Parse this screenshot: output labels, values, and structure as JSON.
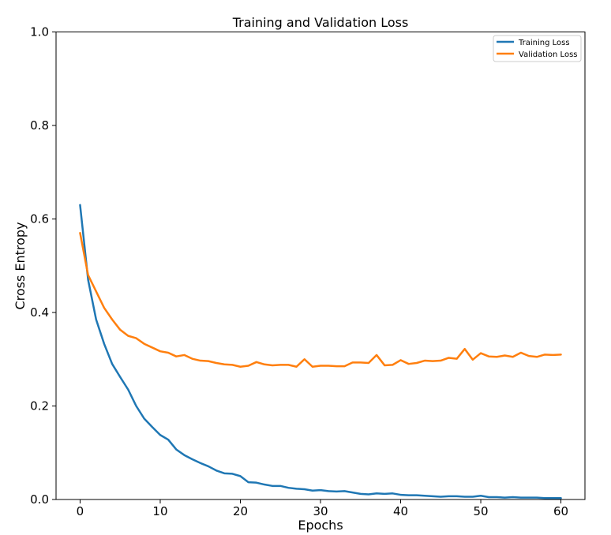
{
  "chart_data": {
    "type": "line",
    "title": "Training and Validation Loss",
    "xlabel": "Epochs",
    "ylabel": "Cross Entropy",
    "xlim": [
      -3,
      63
    ],
    "ylim": [
      0,
      1.0
    ],
    "xticks": [
      0,
      10,
      20,
      30,
      40,
      50,
      60
    ],
    "xtick_labels": [
      "0",
      "10",
      "20",
      "30",
      "40",
      "50",
      "60"
    ],
    "yticks": [
      0,
      0.2,
      0.4,
      0.6,
      0.8,
      1.0
    ],
    "ytick_labels": [
      "0.0",
      "0.2",
      "0.4",
      "0.6",
      "0.8",
      "1.0"
    ],
    "grid": false,
    "legend_position": "top-right",
    "x": [
      0,
      1,
      2,
      3,
      4,
      5,
      6,
      7,
      8,
      9,
      10,
      11,
      12,
      13,
      14,
      15,
      16,
      17,
      18,
      19,
      20,
      21,
      22,
      23,
      24,
      25,
      26,
      27,
      28,
      29,
      30,
      31,
      32,
      33,
      34,
      35,
      36,
      37,
      38,
      39,
      40,
      41,
      42,
      43,
      44,
      45,
      46,
      47,
      48,
      49,
      50,
      51,
      52,
      53,
      54,
      55,
      56,
      57,
      58,
      59,
      60
    ],
    "series": [
      {
        "name": "Training Loss",
        "color": "#1f77b4",
        "values": [
          0.63,
          0.47,
          0.385,
          0.333,
          0.29,
          0.262,
          0.235,
          0.2,
          0.173,
          0.155,
          0.138,
          0.128,
          0.107,
          0.095,
          0.086,
          0.078,
          0.071,
          0.062,
          0.056,
          0.055,
          0.05,
          0.037,
          0.036,
          0.032,
          0.029,
          0.029,
          0.025,
          0.023,
          0.022,
          0.019,
          0.02,
          0.018,
          0.017,
          0.018,
          0.015,
          0.012,
          0.011,
          0.013,
          0.012,
          0.013,
          0.01,
          0.009,
          0.009,
          0.008,
          0.007,
          0.006,
          0.007,
          0.007,
          0.006,
          0.006,
          0.008,
          0.005,
          0.005,
          0.004,
          0.005,
          0.004,
          0.004,
          0.004,
          0.003,
          0.003,
          0.003
        ]
      },
      {
        "name": "Validation Loss",
        "color": "#ff7f0e",
        "values": [
          0.57,
          0.48,
          0.445,
          0.41,
          0.385,
          0.363,
          0.35,
          0.345,
          0.333,
          0.325,
          0.317,
          0.314,
          0.306,
          0.309,
          0.301,
          0.297,
          0.296,
          0.292,
          0.289,
          0.288,
          0.284,
          0.286,
          0.294,
          0.289,
          0.287,
          0.288,
          0.288,
          0.284,
          0.3,
          0.284,
          0.286,
          0.286,
          0.285,
          0.285,
          0.293,
          0.293,
          0.292,
          0.309,
          0.287,
          0.288,
          0.298,
          0.29,
          0.292,
          0.297,
          0.296,
          0.297,
          0.303,
          0.301,
          0.322,
          0.299,
          0.313,
          0.306,
          0.305,
          0.308,
          0.305,
          0.314,
          0.307,
          0.305,
          0.31,
          0.309,
          0.31
        ]
      }
    ]
  }
}
